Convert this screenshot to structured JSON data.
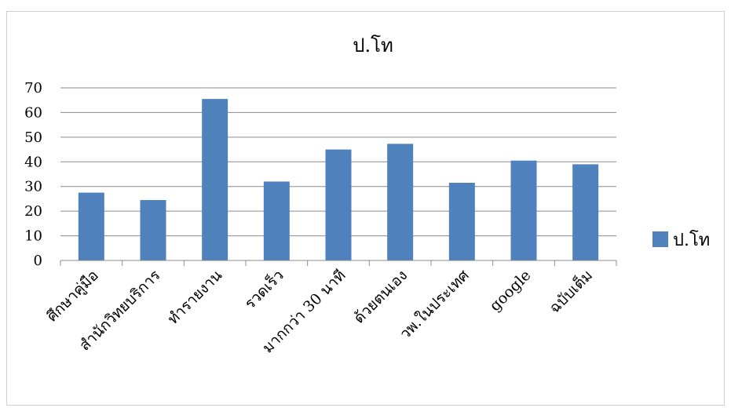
{
  "chart_data": {
    "type": "bar",
    "title": "ป.โท",
    "categories": [
      "ศึกษาคู่มือ",
      "สำนักวิทยบริการ",
      "ทำรายงาน",
      "รวดเร็ว",
      "มากกว่า 30 นาที",
      "ด้วยตนเอง",
      "วพ.ในประเทศ",
      "google",
      "ฉบับเต็ม"
    ],
    "series": [
      {
        "name": "ป.โท",
        "values": [
          27.5,
          24.5,
          65.5,
          32,
          45,
          47.3,
          31.5,
          40.5,
          39
        ]
      }
    ],
    "ylim": [
      0,
      70
    ],
    "yticks": [
      0,
      10,
      20,
      30,
      40,
      50,
      60,
      70
    ],
    "grid": true,
    "legend": "right",
    "bar_color": "#4f81bd"
  }
}
